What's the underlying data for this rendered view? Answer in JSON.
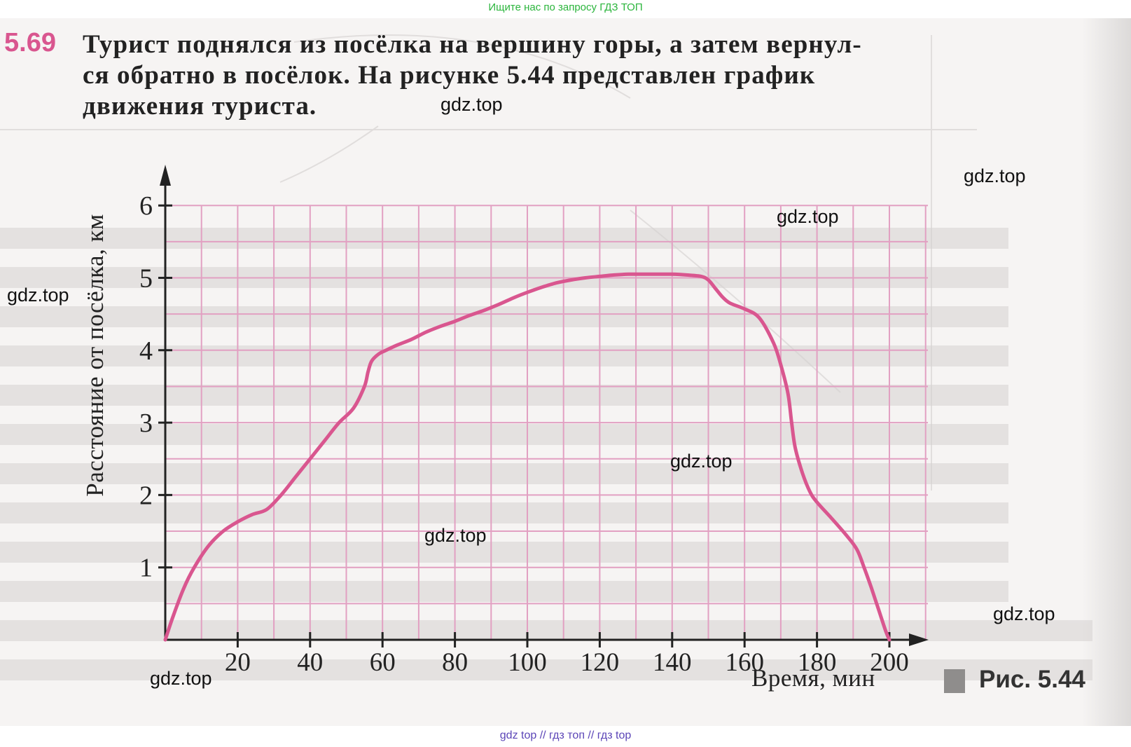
{
  "top_hint": "Ищите нас по запросу ГДЗ ТОП",
  "bottom_hint": "gdz top // гдз топ // гдз top",
  "task": {
    "number": "5.69",
    "lines": [
      "Турист поднялся из посёлка на вершину горы, а затем вернул-",
      "ся обратно в посёлок. На рисунке 5.44 представлен график",
      "движения туриста."
    ]
  },
  "watermarks": [
    "gdz.top",
    "gdz.top",
    "gdz.top",
    "gdz.top",
    "gdz.top",
    "gdz.top",
    "gdz.top",
    "gdz.top",
    "gdz.top"
  ],
  "figure": {
    "caption": "Рис. 5.44"
  },
  "chart_data": {
    "type": "line",
    "title": "",
    "xlabel": "Время, мин",
    "ylabel": "Расстояние от посёлка, км",
    "xlim": [
      0,
      210
    ],
    "ylim": [
      0,
      6
    ],
    "x_ticks": [
      20,
      40,
      60,
      80,
      100,
      120,
      140,
      160,
      180,
      200
    ],
    "y_ticks": [
      1,
      2,
      3,
      4,
      5,
      6
    ],
    "grid": true,
    "grid_color": "#e2a0c2",
    "line_color": "#d9568f",
    "series": [
      {
        "x": [
          0,
          2,
          5,
          8,
          12,
          16,
          20,
          24,
          28,
          32,
          36,
          40,
          44,
          48,
          52,
          55,
          56,
          57,
          59,
          61,
          64,
          68,
          72,
          76,
          80,
          84,
          88,
          92,
          96,
          100,
          104,
          108,
          112,
          116,
          120,
          124,
          128,
          132,
          136,
          140,
          144,
          148,
          150,
          152,
          154,
          156,
          160,
          164,
          168,
          170,
          172,
          173,
          174,
          176,
          178,
          180,
          184,
          188,
          191,
          193,
          195,
          197,
          199,
          200
        ],
        "y": [
          0,
          0.3,
          0.7,
          1.0,
          1.3,
          1.5,
          1.63,
          1.73,
          1.8,
          2.0,
          2.25,
          2.5,
          2.75,
          3.0,
          3.2,
          3.5,
          3.7,
          3.85,
          3.95,
          4.0,
          4.07,
          4.15,
          4.25,
          4.33,
          4.4,
          4.48,
          4.55,
          4.63,
          4.72,
          4.8,
          4.87,
          4.93,
          4.97,
          5.0,
          5.02,
          5.04,
          5.05,
          5.05,
          5.05,
          5.05,
          5.04,
          5.02,
          4.97,
          4.85,
          4.73,
          4.65,
          4.57,
          4.45,
          4.1,
          3.8,
          3.4,
          3.0,
          2.65,
          2.3,
          2.05,
          1.9,
          1.68,
          1.45,
          1.25,
          1.0,
          0.72,
          0.42,
          0.12,
          0
        ]
      }
    ]
  }
}
